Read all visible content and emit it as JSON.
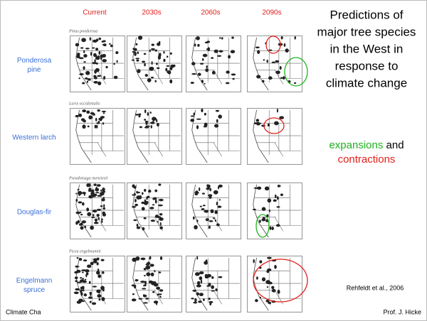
{
  "columns": [
    "Current",
    "2030s",
    "2060s",
    "2090s"
  ],
  "rows": [
    {
      "label_lines": [
        "Ponderosa",
        "pine"
      ],
      "species": "Pinus ponderosa"
    },
    {
      "label_lines": [
        "Western larch"
      ],
      "species": "Larix occidentalis"
    },
    {
      "label_lines": [
        "Douglas-fir"
      ],
      "species": "Pseudotsuga menziesii"
    },
    {
      "label_lines": [
        "Engelmann",
        "spruce"
      ],
      "species": "Picea engelmannii"
    }
  ],
  "title_lines": [
    "Predictions of",
    "major tree species",
    "in the West in",
    "response to",
    "climate change"
  ],
  "highlight": {
    "expansions": "expansions",
    "and": "and",
    "contractions": "contractions"
  },
  "citation": "Rehfeldt et al., 2006",
  "footer": {
    "left": "Climate Cha",
    "right": "Prof. J. Hicke"
  }
}
